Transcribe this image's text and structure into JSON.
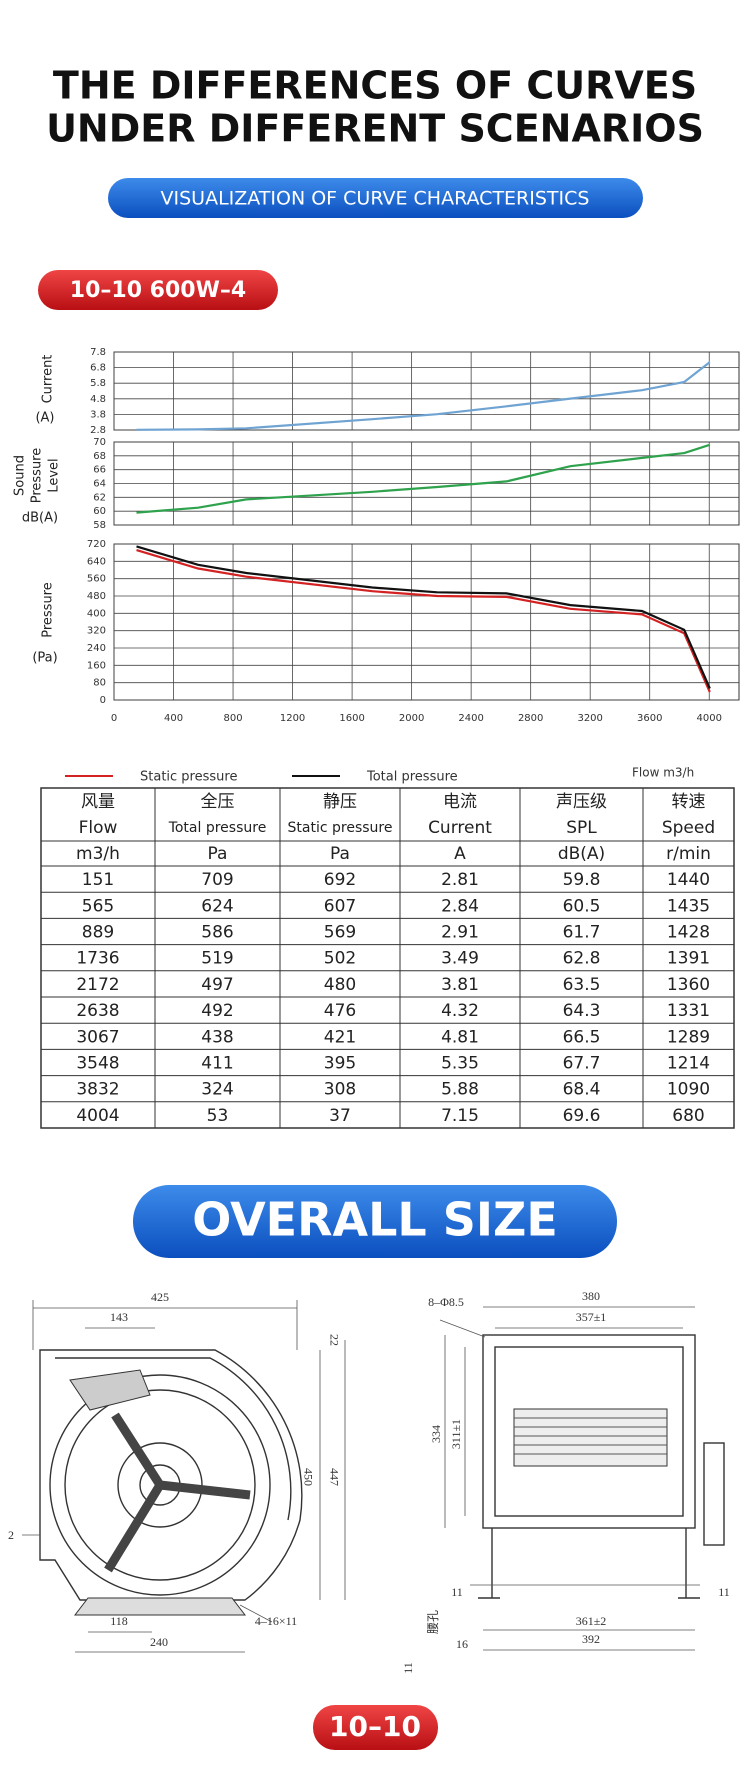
{
  "header": {
    "title": [
      "THE DIFFERENCES OF CURVES",
      "UNDER DIFFERENT SCENARIOS"
    ],
    "subtitle": "VISUALIZATION OF CURVE CHARACTERISTICS",
    "model": "10–10 600W–4"
  },
  "chart_data": [
    {
      "type": "line",
      "y_label": [
        "Current"
      ],
      "y_unit": "(A)",
      "x": [
        151,
        565,
        889,
        1736,
        2172,
        2638,
        3067,
        3548,
        3832,
        4004
      ],
      "values": [
        2.81,
        2.84,
        2.91,
        3.49,
        3.81,
        4.32,
        4.81,
        5.35,
        5.88,
        7.15
      ],
      "color": "#6fa3d2",
      "xlim": [
        0,
        4200
      ],
      "xticks": [
        0,
        400,
        800,
        1200,
        1600,
        2000,
        2400,
        2800,
        3200,
        3600,
        4000
      ],
      "x_tick_labels": false,
      "ylim": [
        2.8,
        7.8
      ],
      "yticks": [
        2.8,
        3.8,
        4.8,
        5.8,
        6.8,
        7.8
      ],
      "grid": true
    },
    {
      "type": "line",
      "y_label": [
        "Sound",
        "Pressure",
        "Level"
      ],
      "y_unit": "dB(A)",
      "x": [
        151,
        565,
        889,
        1736,
        2172,
        2638,
        3067,
        3548,
        3832,
        4004
      ],
      "values": [
        59.8,
        60.5,
        61.7,
        62.8,
        63.5,
        64.3,
        66.5,
        67.7,
        68.4,
        69.6
      ],
      "color": "#2ea24c",
      "xlim": [
        0,
        4200
      ],
      "xticks": [
        0,
        400,
        800,
        1200,
        1600,
        2000,
        2400,
        2800,
        3200,
        3600,
        4000
      ],
      "x_tick_labels": false,
      "ylim": [
        58,
        70
      ],
      "yticks": [
        58,
        60,
        62,
        64,
        66,
        68,
        70
      ],
      "grid": true
    },
    {
      "type": "line",
      "y_label": [
        "Pressure"
      ],
      "y_unit": "(Pa)",
      "x_label": "Flow m3/h",
      "x": [
        151,
        565,
        889,
        1736,
        2172,
        2638,
        3067,
        3548,
        3832,
        4004
      ],
      "series": [
        {
          "name": "Static pressure",
          "color": "#d42222",
          "values": [
            692,
            607,
            569,
            502,
            480,
            476,
            421,
            395,
            308,
            37
          ]
        },
        {
          "name": "Total pressure",
          "color": "#111111",
          "values": [
            709,
            624,
            586,
            519,
            497,
            492,
            438,
            411,
            324,
            53
          ]
        }
      ],
      "xlim": [
        0,
        4200
      ],
      "xticks": [
        0,
        400,
        800,
        1200,
        1600,
        2000,
        2400,
        2800,
        3200,
        3600,
        4000
      ],
      "x_tick_labels": true,
      "ylim": [
        0,
        720
      ],
      "yticks": [
        0,
        80,
        160,
        240,
        320,
        400,
        480,
        560,
        640,
        720
      ],
      "grid": true
    }
  ],
  "table": {
    "columns": [
      {
        "cn": "风量",
        "en": "Flow",
        "unit": "m3/h"
      },
      {
        "cn": "全压",
        "en": "Total pressure",
        "unit": "Pa"
      },
      {
        "cn": "静压",
        "en": "Static pressure",
        "unit": "Pa"
      },
      {
        "cn": "电流",
        "en": "Current",
        "unit": "A"
      },
      {
        "cn": "声压级",
        "en": "SPL",
        "unit": "dB(A)"
      },
      {
        "cn": "转速",
        "en": "Speed",
        "unit": "r/min"
      }
    ],
    "rows": [
      [
        151,
        709,
        692,
        2.81,
        59.8,
        1440
      ],
      [
        565,
        624,
        607,
        2.84,
        60.5,
        1435
      ],
      [
        889,
        586,
        569,
        2.91,
        61.7,
        1428
      ],
      [
        1736,
        519,
        502,
        3.49,
        62.8,
        1391
      ],
      [
        2172,
        497,
        480,
        3.81,
        63.5,
        1360
      ],
      [
        2638,
        492,
        476,
        4.32,
        64.3,
        1331
      ],
      [
        3067,
        438,
        421,
        4.81,
        66.5,
        1289
      ],
      [
        3548,
        411,
        395,
        5.35,
        67.7,
        1214
      ],
      [
        3832,
        324,
        308,
        5.88,
        68.4,
        1090
      ],
      [
        4004,
        53,
        37,
        7.15,
        69.6,
        680
      ]
    ]
  },
  "size_section": {
    "title": "OVERALL SIZE",
    "model": "10–10"
  },
  "drawing": {
    "labels": [
      "425",
      "143",
      "22",
      "450",
      "447",
      "2",
      "118",
      "240",
      "4–16×11",
      "8–Φ8.5",
      "380",
      "357±1",
      "334",
      "311±1",
      "11",
      "11",
      "361±2",
      "392",
      "腰孔",
      "16",
      "11"
    ]
  }
}
